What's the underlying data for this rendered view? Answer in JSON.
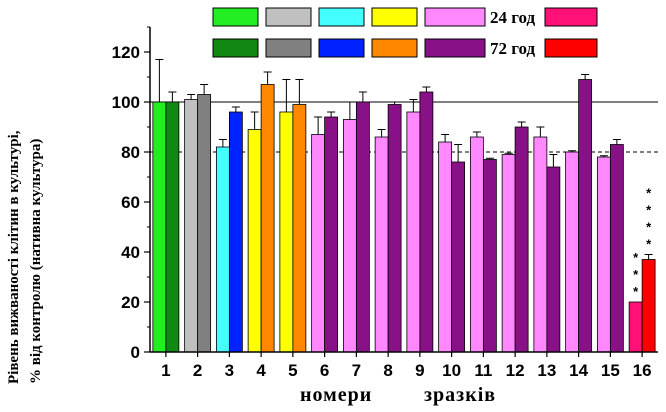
{
  "chart_data": {
    "type": "bar",
    "ylabel_line1": "Рівень вижваності клітин в культурі,",
    "ylabel_line2": "% від контролю (нативна культура)",
    "xlabel_word1": "номери",
    "xlabel_word2": "зразків",
    "ylim": [
      0,
      130
    ],
    "yticks": [
      "0",
      "20",
      "40",
      "60",
      "80",
      "100",
      "120"
    ],
    "reference_lines": [
      {
        "y": 100,
        "style": "solid"
      },
      {
        "y": 80,
        "style": "dashed"
      }
    ],
    "categories": [
      "1",
      "2",
      "3",
      "4",
      "5",
      "6",
      "7",
      "8",
      "9",
      "10",
      "11",
      "12",
      "13",
      "14",
      "15",
      "16"
    ],
    "series": [
      {
        "name": "24 год",
        "values": [
          100,
          101,
          82,
          89,
          96,
          87,
          93,
          86,
          96,
          84,
          86,
          79,
          86,
          80,
          78,
          20
        ],
        "errors": [
          17,
          2,
          3,
          7,
          13,
          7,
          7,
          3,
          5,
          3,
          2,
          0.5,
          4,
          0.5,
          0.5,
          0
        ],
        "colors": [
          "#22ee22",
          "#c0c0c0",
          "#44ffff",
          "#ffff00",
          "#ffff00",
          "#ff88ff",
          "#ff88ff",
          "#ff88ff",
          "#ff88ff",
          "#ff88ff",
          "#ff88ff",
          "#ff88ff",
          "#ff88ff",
          "#ff88ff",
          "#ff88ff",
          "#ff1177"
        ]
      },
      {
        "name": "72 год",
        "values": [
          100,
          103,
          96,
          107,
          99,
          94,
          100,
          99,
          104,
          76,
          77,
          90,
          74,
          109,
          83,
          37
        ],
        "errors": [
          4,
          4,
          2,
          5,
          10,
          2,
          4,
          1,
          2,
          7,
          0.5,
          2,
          5,
          2,
          2,
          2
        ],
        "colors": [
          "#118811",
          "#808080",
          "#0022ff",
          "#ff8800",
          "#ff8800",
          "#881188",
          "#881188",
          "#881188",
          "#881188",
          "#881188",
          "#881188",
          "#881188",
          "#881188",
          "#881188",
          "#881188",
          "#ff0000"
        ]
      }
    ],
    "annotations": [
      {
        "category": "16",
        "series": "24 год",
        "text": "***"
      },
      {
        "category": "16",
        "series": "72 год",
        "text": "****"
      }
    ],
    "legend": {
      "placement": "top",
      "row1_colors": [
        "#22ee22",
        "#c0c0c0",
        "#44ffff",
        "#ffff00",
        "#ff88ff",
        "#ff1177"
      ],
      "row2_colors": [
        "#118811",
        "#808080",
        "#0022ff",
        "#ff8800",
        "#881188",
        "#ff0000"
      ],
      "row1_label": "24 год",
      "row2_label": "72 год"
    }
  }
}
